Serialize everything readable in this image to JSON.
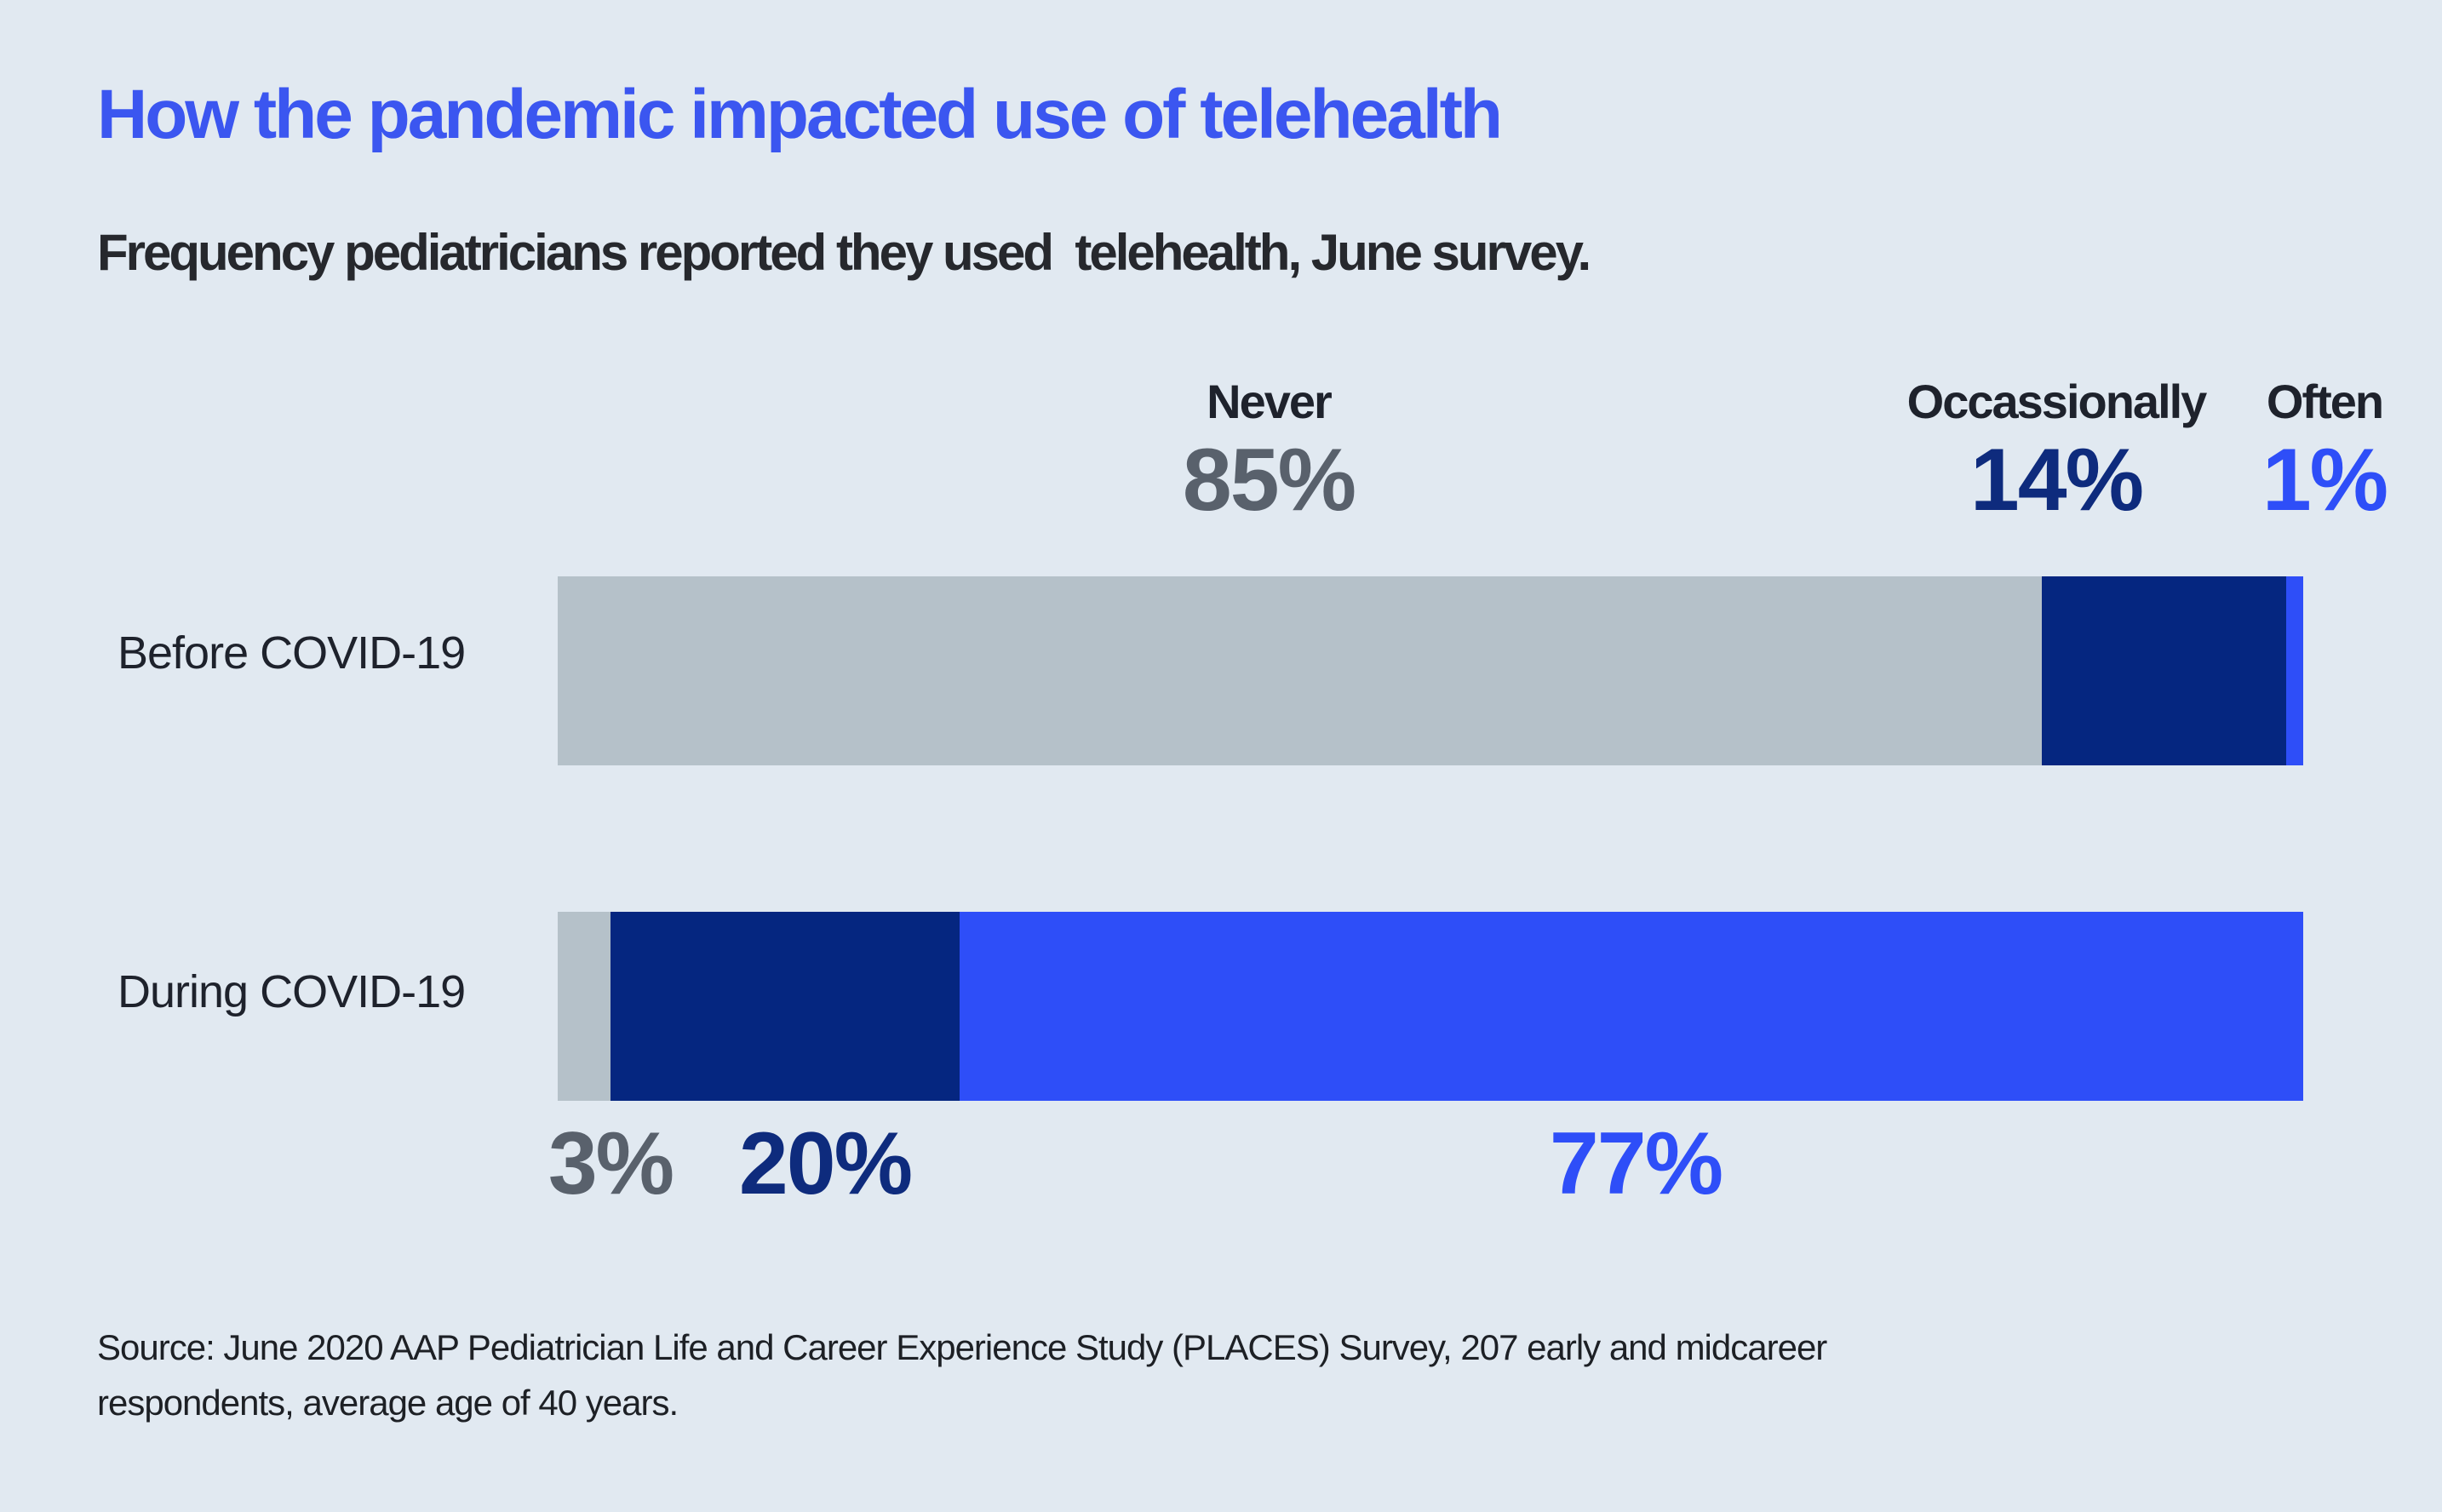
{
  "page": {
    "title": "How the pandemic impacted use of telehealth",
    "subtitle": "Frequency pediatricians reported they used  telehealth, June survey.",
    "source_line1": "Source: June 2020 AAP Pediatrician Life and Career Experience Study (PLACES) Survey, 207 early and midcareer",
    "source_line2": "respondents, average age of 40 years."
  },
  "colors": {
    "background": "#e1e9f1",
    "title": "#3b56f0",
    "subtitle": "#26282d",
    "category_label": "#1e222c",
    "series_name_label": "#1e222c",
    "source": "#1d2025"
  },
  "chart_data": {
    "type": "bar",
    "orientation": "horizontal",
    "stacked": true,
    "unit": "percent",
    "value_range": [
      0,
      100
    ],
    "grid": false,
    "legend_position": "above-bars-as-value-labels",
    "categories": [
      "Before COVID-19",
      "During COVID-19"
    ],
    "series": [
      {
        "name": "Never",
        "values": [
          85,
          3
        ],
        "row1_label": "85%",
        "row2_label": "3%",
        "bar_color": "#b5c1c9",
        "label_color": "#59616c"
      },
      {
        "name": "Occassionally",
        "values": [
          14,
          20
        ],
        "row1_label": "14%",
        "row2_label": "20%",
        "bar_color": "#052680",
        "label_color": "#0e2b7d"
      },
      {
        "name": "Often",
        "values": [
          1,
          77
        ],
        "row1_label": "1%",
        "row2_label": "77%",
        "bar_color": "#2e4ef8",
        "label_color": "#2e4ef8"
      }
    ]
  }
}
